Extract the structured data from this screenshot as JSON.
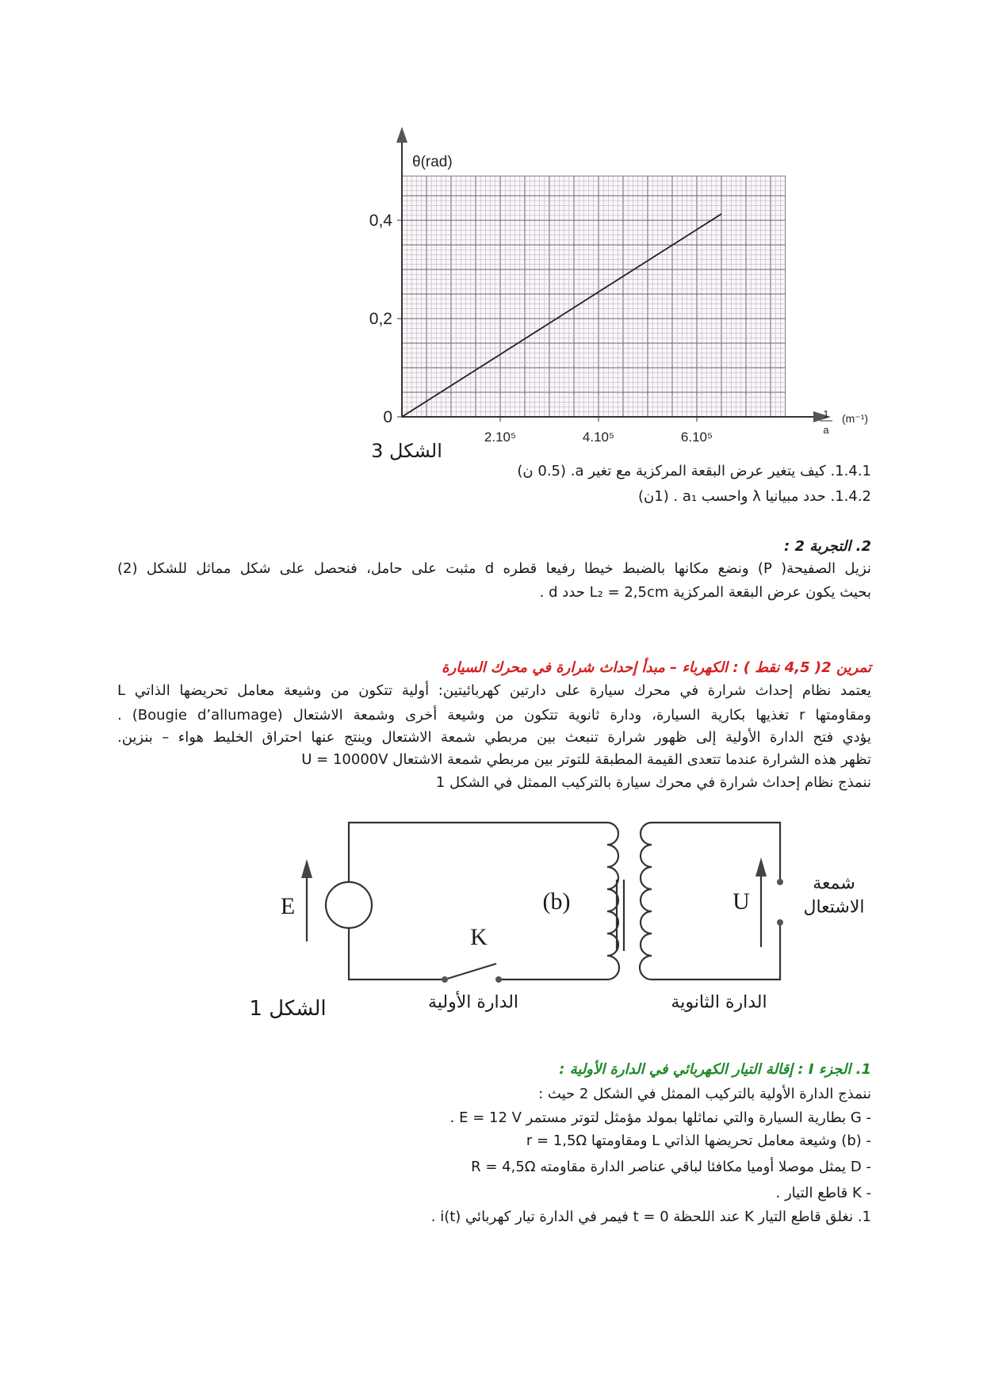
{
  "chart_data": {
    "type": "line",
    "ylabel": "θ(rad)",
    "xlabel_num": "1",
    "xlabel_den": "a",
    "xlabel_unit": "(m⁻¹)",
    "x_ticks": [
      {
        "value": 200000,
        "label": "2.10⁵"
      },
      {
        "value": 400000,
        "label": "4.10⁵"
      },
      {
        "value": 600000,
        "label": "6.10⁵"
      }
    ],
    "y_ticks": [
      {
        "value": 0,
        "label": "0"
      },
      {
        "value": 0.2,
        "label": "0,2"
      },
      {
        "value": 0.4,
        "label": "0,4"
      }
    ],
    "xlim": [
      0,
      780000
    ],
    "ylim": [
      0,
      0.49
    ],
    "grid": true,
    "series": [
      {
        "x": [
          0,
          650000
        ],
        "y": [
          0,
          0.413
        ]
      }
    ],
    "caption": "الشكل 3"
  },
  "q141": "1.4.1. كيف يتغير عرض البقعة المركزية مع تغير a. (0.5 ن)",
  "q142": "1.4.2. حدد مبيانيا λ واحسب a₁ . (1ن)",
  "exp2": {
    "title": "2. التجربة 2 :",
    "lines": [
      "نزيل الصفيحة( P)   ونضع مكانها بالضبط خيطا رفيعا قطره d مثبت على حامل، فنحصل على شكل مماثل للشكل (2)",
      "بحيث يكون عرض البقعة المركزية  L₂ = 2,5cm حدد d ."
    ]
  },
  "ex2": {
    "title": "تمرين 2( 4,5 نقط ) : الكهرباء – مبدأ إحداث شرارة في محرك السيارة",
    "lines": [
      "يعتمد نظام إحداث شرارة في محرك سيارة على دارتين كهربائيتين: أولية تتكون من وشيعة معامل تحريضها الذاتي L",
      "ومقاومتها r تغذيها بكارية السيارة، ودارة ثانوية تتكون من وشيعة أخرى وشمعة الاشتعال (Bougie d’allumage) .",
      "يؤدي فتح الدارة الأولية إلى ظهور شرارة تنبعث بين مربطي شمعة الاشتعال وينتج عنها احتراق الخليط هواء – بنزين.",
      "تظهر  هذه الشرارة عندما تتعدى القيمة المطبقة للتوتر بين مربطي شمعة الاشتعال U = 10000V",
      "ننمذج نظام إحداث شرارة في محرك سيارة بالتركيب الممثل في الشكل 1"
    ]
  },
  "circuit": {
    "E": "E",
    "K": "K",
    "b": "(b)",
    "U": "U",
    "spark_plug_1": "شمعة",
    "spark_plug_2": "الاشتعال",
    "caption": "الشكل 1",
    "primary": "الدارة الأولية",
    "secondary": "الدارة الثانوية"
  },
  "part1": {
    "title": "1. الجزء I : إقالة التيار الكهربائي في الدارة الأولية :",
    "lines": [
      "ننمذج الدارة الأولية بالتركيب الممثل في الشكل 2 حيث :",
      "- G بطارية السيارة والتي نماثلها بمولد مؤمثل لتوتر مستمر E = 12 V .",
      "- (b) وشيعة معامل تحريضها الذاتي L ومقاومتها  r = 1,5Ω",
      "- D يمثل موصلا أوميا مكافئا لباقي عناصر الدارة مقاومته  R = 4,5Ω",
      "- K قاطع التيار .",
      "1. نغلق قاطع التيار K عند اللحظة t = 0 فيمر في الدارة تيار كهربائي i(t) ."
    ]
  }
}
